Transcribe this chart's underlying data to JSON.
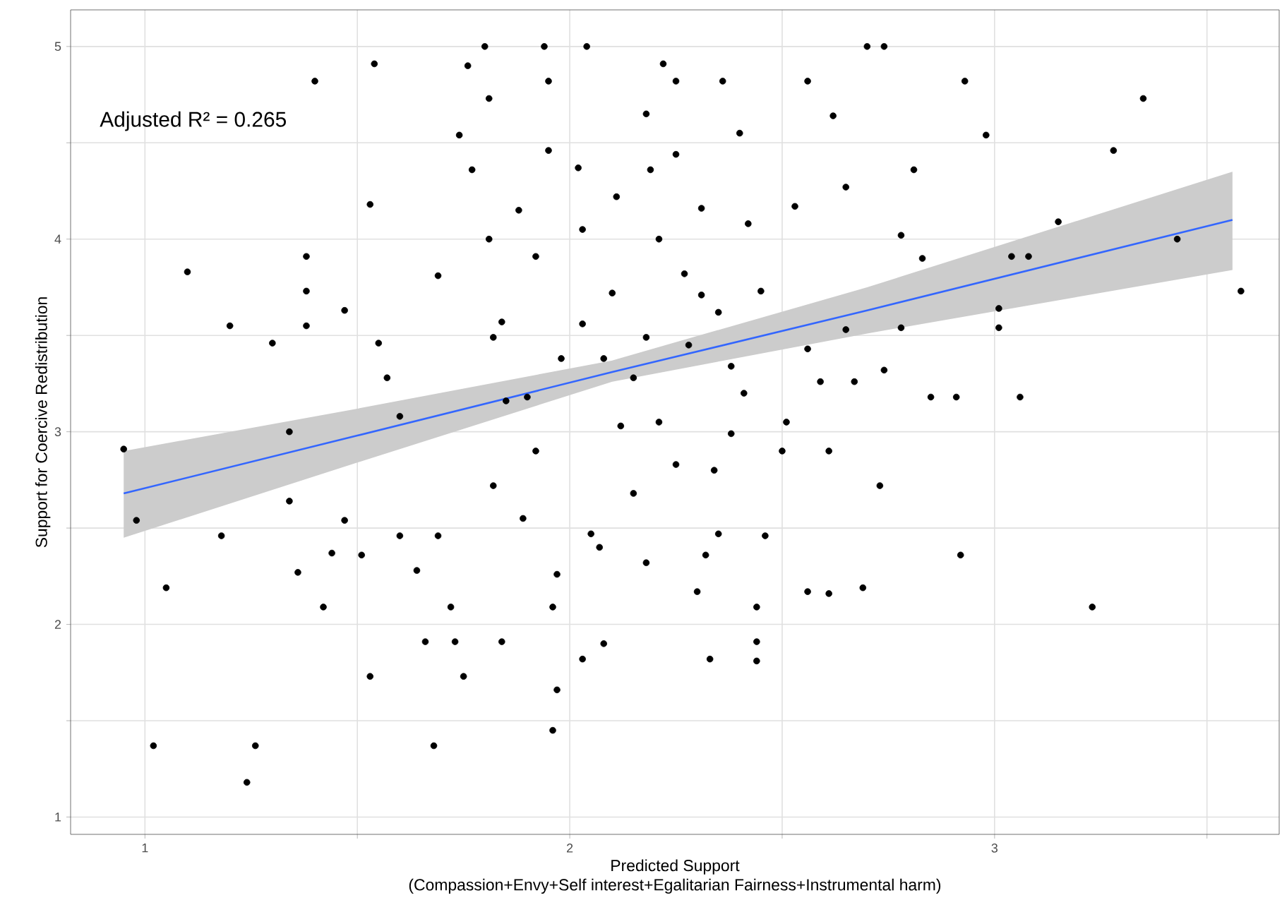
{
  "chart_data": {
    "type": "scatter",
    "xlabel": "Predicted Support",
    "ylabel": "Support for Coercive Redistribution",
    "annotations": [
      "(Compassion+Envy+Self interest+Egalitarian Fairness+Instrumental harm)",
      "Adjusted R² = 0.265"
    ],
    "xlim": [
      0.825,
      3.67
    ],
    "ylim": [
      0.91,
      5.19
    ],
    "xticks": [
      1,
      {
        "value": 1.5,
        "label": null
      },
      2,
      {
        "value": 2.5,
        "label": null
      },
      3,
      {
        "value": 3.5,
        "label": null
      }
    ],
    "yticks": [
      1,
      {
        "value": 1.5,
        "label": null
      },
      2,
      {
        "value": 2.5,
        "label": null
      },
      3,
      {
        "value": 3.5,
        "label": null
      },
      4,
      {
        "value": 4.5,
        "label": null
      },
      5
    ],
    "grid": true,
    "series": [
      {
        "marker": "circle",
        "color": "#000000",
        "x": [
          0.95,
          0.98,
          1.05,
          1.02,
          1.1,
          1.2,
          1.18,
          1.24,
          1.26,
          1.3,
          1.34,
          1.34,
          1.36,
          1.38,
          1.38,
          1.38,
          1.4,
          1.42,
          1.44,
          1.47,
          1.47,
          1.51,
          1.53,
          1.54,
          1.53,
          1.55,
          1.57,
          1.6,
          1.6,
          1.64,
          1.66,
          1.68,
          1.69,
          1.69,
          1.72,
          1.73,
          1.74,
          1.75,
          1.76,
          1.77,
          1.8,
          1.81,
          1.81,
          1.82,
          1.84,
          1.84,
          1.89,
          1.9,
          1.92,
          1.94,
          1.95,
          1.95,
          1.97,
          1.96,
          1.96,
          1.97,
          2.03,
          2.03,
          2.03,
          2.04,
          2.08,
          2.07,
          2.1,
          2.12,
          2.15,
          2.18,
          2.19,
          2.22,
          2.25,
          2.27,
          2.31,
          2.32,
          2.33,
          2.34,
          2.35,
          2.36,
          2.38,
          2.4,
          2.42,
          2.44,
          2.44,
          2.44,
          2.45,
          2.46,
          2.5,
          2.53,
          2.56,
          2.56,
          2.56,
          2.59,
          2.61,
          2.61,
          2.62,
          2.65,
          2.67,
          2.69,
          2.7,
          2.74,
          2.74,
          2.73,
          2.78,
          2.81,
          2.83,
          2.78,
          2.85,
          2.91,
          2.92,
          2.93,
          2.98,
          3.01,
          3.01,
          3.04,
          3.06,
          3.08,
          3.15,
          3.23,
          3.28,
          3.35,
          3.43,
          3.58,
          2.08,
          2.18,
          2.28,
          2.21,
          1.98,
          1.85,
          2.15,
          2.25,
          2.38,
          2.31,
          2.21,
          2.11,
          1.92,
          2.05,
          2.3,
          2.51,
          2.65,
          2.41,
          1.82,
          1.88,
          2.02,
          2.25,
          2.35,
          2.18
        ],
        "values": [
          2.91,
          2.54,
          2.19,
          1.37,
          3.83,
          3.55,
          2.46,
          1.18,
          1.37,
          3.46,
          3.0,
          2.64,
          2.27,
          3.91,
          3.73,
          3.55,
          4.82,
          2.09,
          2.37,
          3.63,
          2.54,
          2.36,
          1.73,
          4.91,
          4.18,
          3.46,
          3.28,
          3.08,
          2.46,
          2.28,
          1.91,
          1.37,
          2.46,
          3.81,
          2.09,
          1.91,
          4.54,
          1.73,
          4.9,
          4.36,
          5.0,
          4.73,
          4.0,
          2.72,
          1.91,
          3.57,
          2.55,
          3.18,
          3.91,
          5.0,
          4.82,
          4.46,
          1.66,
          1.45,
          2.09,
          2.26,
          3.56,
          1.82,
          4.05,
          5.0,
          1.9,
          2.4,
          3.72,
          3.03,
          3.28,
          4.65,
          4.36,
          4.91,
          4.82,
          3.82,
          4.16,
          2.36,
          1.82,
          2.8,
          3.62,
          4.82,
          2.99,
          4.55,
          4.08,
          2.09,
          1.91,
          1.81,
          3.73,
          2.46,
          2.9,
          4.17,
          4.82,
          2.17,
          3.43,
          3.26,
          2.9,
          2.16,
          4.64,
          4.27,
          3.26,
          2.19,
          5.0,
          3.32,
          5.0,
          2.72,
          4.02,
          4.36,
          3.9,
          3.54,
          3.18,
          3.18,
          2.36,
          4.82,
          4.54,
          3.54,
          3.64,
          3.91,
          3.18,
          3.91,
          4.09,
          2.09,
          4.46,
          4.73,
          4.0,
          3.73,
          3.38,
          3.49,
          3.45,
          3.05,
          3.38,
          3.16,
          2.68,
          2.83,
          3.34,
          3.71,
          4.0,
          4.22,
          2.9,
          2.47,
          2.17,
          3.05,
          3.53,
          3.2,
          3.49,
          4.15,
          4.37,
          4.44,
          2.47,
          2.32
        ]
      },
      {
        "type": "line",
        "marker": "none",
        "line_style": "solid",
        "color": "#3366ff",
        "x": [
          0.95,
          1.5,
          2.1,
          2.7,
          3.56
        ],
        "values": [
          2.68,
          2.98,
          3.31,
          3.63,
          4.1
        ],
        "lower": [
          2.45,
          2.84,
          3.26,
          3.51,
          3.84
        ],
        "upper": [
          2.9,
          3.12,
          3.37,
          3.75,
          4.35
        ]
      }
    ]
  }
}
